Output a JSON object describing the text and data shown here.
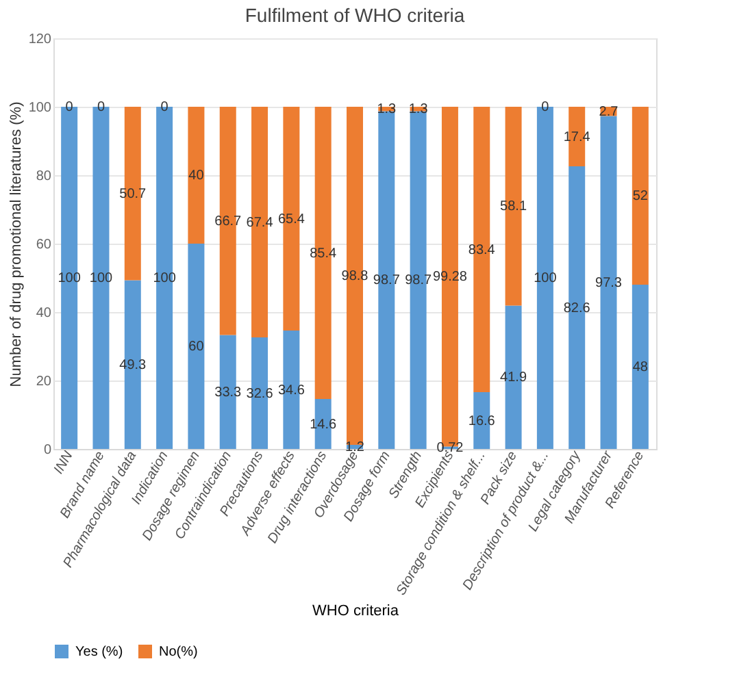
{
  "chart_data": {
    "type": "bar",
    "title": "Fulfilment of WHO criteria",
    "xlabel": "WHO criteria",
    "ylabel": "Number of drug promotional literatures (%)",
    "categories": [
      "INN",
      "Brand name",
      "Pharmacological data",
      "Indication",
      "Dosage regimen",
      "Contraindication",
      "Precautions",
      "Adverse effects",
      "Drug interactions",
      "Overdosage",
      "Dosage form",
      "Strength",
      "Excipients",
      "Storage condition & shelf...",
      "Pack size",
      "Description of product &...",
      "Legal category",
      "Manufacturer",
      "Reference"
    ],
    "series": [
      {
        "name": "Yes (%)",
        "color": "#5b9bd5",
        "values": [
          100,
          100,
          49.3,
          100,
          60,
          33.3,
          32.6,
          34.6,
          14.6,
          1.2,
          98.7,
          98.7,
          0.72,
          16.6,
          41.9,
          100,
          82.6,
          97.3,
          48
        ]
      },
      {
        "name": "No(%)",
        "color": "#ed7d31",
        "values": [
          0,
          0,
          50.7,
          0,
          40,
          66.7,
          67.4,
          65.4,
          85.4,
          98.8,
          1.3,
          1.3,
          99.28,
          83.4,
          58.1,
          0,
          17.4,
          2.7,
          52
        ]
      }
    ],
    "stacked": true,
    "data_labels": true,
    "ylim": [
      0,
      120
    ],
    "yticks": [
      0,
      20,
      40,
      60,
      80,
      100,
      120
    ],
    "grid": "y",
    "legend": "bottom"
  }
}
